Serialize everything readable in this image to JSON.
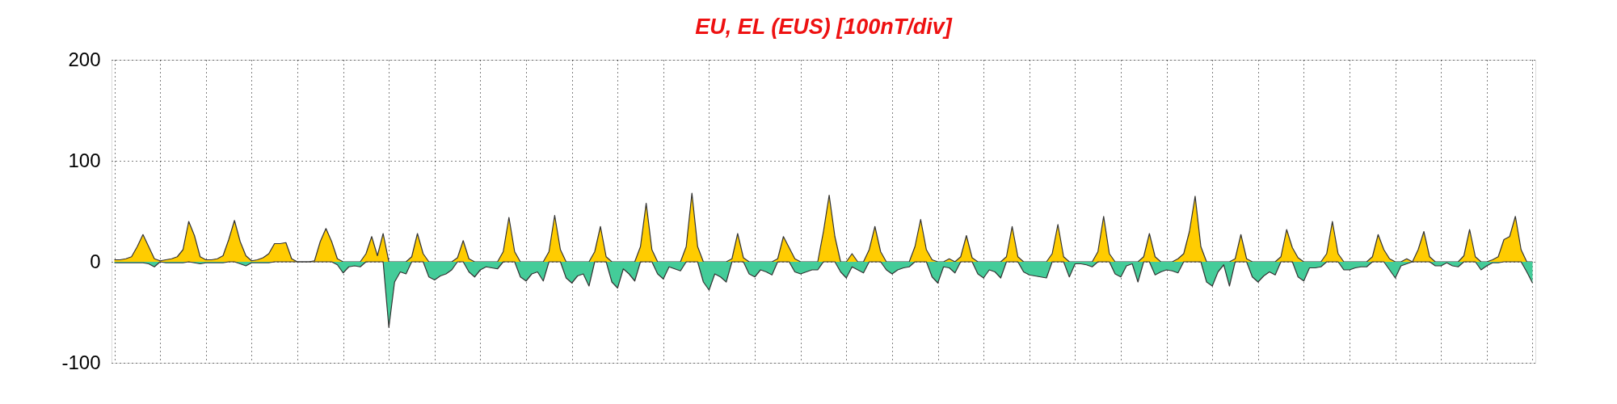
{
  "chart_data": {
    "type": "area",
    "title": "EU, EL (EUS)  [100nT/div]",
    "categories": [
      null,
      null,
      null,
      null,
      null,
      null,
      null,
      null,
      null,
      null,
      null,
      null,
      null,
      null,
      null,
      null,
      null,
      null,
      null,
      null,
      null,
      null,
      null,
      null,
      null,
      null,
      null,
      null,
      null,
      null,
      null,
      null,
      null,
      null,
      null,
      null,
      null,
      null,
      null,
      null,
      null,
      null,
      null,
      null,
      null,
      null,
      null,
      null,
      null,
      null,
      null,
      null,
      null,
      null,
      null,
      null,
      null,
      null,
      null,
      null,
      null,
      null,
      null,
      null,
      null,
      null,
      null,
      null,
      null,
      null,
      null,
      null,
      null,
      null,
      null,
      null,
      null,
      null,
      null,
      null,
      null,
      null,
      null,
      null,
      null,
      null,
      null,
      null,
      null,
      null,
      null,
      null,
      null,
      null,
      null,
      null,
      null,
      null,
      null,
      null,
      null,
      null,
      null,
      null,
      null,
      null,
      null,
      null,
      null,
      null,
      null,
      null,
      null,
      null,
      null,
      null,
      null,
      null,
      null,
      null,
      null,
      null,
      null,
      null,
      null,
      null,
      null,
      null,
      null,
      null,
      null,
      null,
      null,
      null,
      null,
      null,
      null,
      null,
      null,
      null,
      null,
      null,
      null,
      null,
      null,
      null,
      null,
      null,
      null,
      null,
      null,
      null,
      null,
      null,
      null,
      null,
      null,
      null,
      null,
      null,
      null,
      null,
      null,
      null,
      null,
      null,
      null,
      null,
      null,
      null,
      null,
      null,
      null,
      null,
      null,
      null,
      null,
      null,
      null,
      null,
      null,
      null,
      null,
      null,
      null,
      null,
      null,
      null,
      null,
      null,
      null,
      null,
      null,
      null,
      null,
      null,
      null,
      null,
      null,
      null,
      null,
      null,
      null,
      null,
      null,
      null,
      null,
      null,
      null,
      null,
      null,
      null,
      null,
      null,
      null,
      null,
      null,
      null,
      null,
      null,
      null,
      null,
      null,
      null,
      null,
      null,
      null,
      null,
      null,
      null,
      null,
      null,
      null,
      null,
      null,
      null,
      null,
      null,
      null,
      null,
      null,
      null,
      null,
      null,
      null,
      null,
      null,
      null,
      null
    ],
    "ylim": [
      -100,
      200
    ],
    "yticks": [
      -100,
      0,
      100,
      200
    ],
    "grid": true,
    "tick_labels": "y",
    "series": [
      {
        "color": "#ffcc00",
        "values": [
          2,
          2,
          3,
          5,
          15,
          27,
          15,
          3,
          1,
          2,
          3,
          5,
          12,
          40,
          26,
          5,
          2,
          2,
          3,
          6,
          22,
          41,
          20,
          6,
          1,
          2,
          4,
          8,
          18,
          18,
          19,
          3,
          0,
          0,
          0,
          1,
          20,
          33,
          20,
          3,
          0,
          0,
          0,
          0,
          8,
          25,
          6,
          28,
          0,
          0,
          0,
          0,
          5,
          28,
          8,
          0,
          0,
          0,
          0,
          0,
          4,
          21,
          3,
          0,
          0,
          0,
          0,
          0,
          10,
          44,
          10,
          0,
          0,
          0,
          0,
          0,
          10,
          46,
          12,
          0,
          0,
          0,
          0,
          0,
          10,
          35,
          5,
          0,
          0,
          0,
          0,
          0,
          15,
          58,
          12,
          0,
          0,
          0,
          0,
          0,
          15,
          68,
          15,
          0,
          0,
          0,
          0,
          0,
          3,
          28,
          4,
          0,
          0,
          0,
          0,
          0,
          3,
          25,
          14,
          3,
          0,
          0,
          0,
          0,
          30,
          66,
          25,
          0,
          0,
          8,
          0,
          0,
          12,
          35,
          10,
          0,
          0,
          0,
          0,
          0,
          15,
          42,
          12,
          2,
          0,
          0,
          3,
          0,
          5,
          26,
          4,
          0,
          0,
          0,
          0,
          0,
          5,
          35,
          5,
          0,
          0,
          0,
          0,
          0,
          8,
          37,
          5,
          0,
          0,
          0,
          0,
          0,
          10,
          45,
          8,
          0,
          0,
          0,
          0,
          0,
          5,
          28,
          5,
          0,
          0,
          0,
          3,
          8,
          30,
          65,
          15,
          0,
          0,
          0,
          0,
          0,
          3,
          27,
          3,
          0,
          0,
          0,
          0,
          0,
          5,
          32,
          14,
          4,
          0,
          0,
          0,
          0,
          8,
          40,
          8,
          0,
          0,
          0,
          0,
          0,
          5,
          27,
          12,
          3,
          0,
          0,
          3,
          0,
          12,
          30,
          5,
          0,
          0,
          0,
          0,
          0,
          6,
          32,
          5,
          0,
          0,
          2,
          5,
          22,
          25,
          45,
          12,
          0,
          0
        ]
      },
      {
        "color": "#44cc99",
        "values": [
          -1,
          -1,
          -1,
          -1,
          -1,
          -1,
          -2,
          -5,
          0,
          -1,
          -1,
          -1,
          -1,
          0,
          -1,
          -2,
          -1,
          -1,
          -1,
          -1,
          0,
          0,
          -2,
          -4,
          -1,
          -1,
          -1,
          -1,
          0,
          0,
          0,
          0,
          0,
          0,
          0,
          0,
          0,
          0,
          0,
          -3,
          -11,
          -5,
          -4,
          -5,
          0,
          0,
          0,
          0,
          -65,
          -20,
          -10,
          -12,
          0,
          0,
          0,
          -15,
          -18,
          -14,
          -12,
          -8,
          0,
          0,
          -10,
          -15,
          -8,
          -5,
          -6,
          -7,
          0,
          0,
          0,
          -15,
          -19,
          -12,
          -10,
          -19,
          0,
          0,
          0,
          -16,
          -21,
          -14,
          -12,
          -24,
          0,
          0,
          0,
          -20,
          -26,
          -7,
          -12,
          -19,
          0,
          0,
          0,
          -12,
          -17,
          -5,
          -7,
          -9,
          0,
          0,
          0,
          -20,
          -28,
          -12,
          -15,
          -20,
          0,
          0,
          0,
          -12,
          -15,
          -8,
          -10,
          -13,
          0,
          0,
          0,
          -10,
          -12,
          -10,
          -8,
          -8,
          0,
          0,
          0,
          -10,
          -16,
          -5,
          -8,
          -11,
          0,
          0,
          0,
          -8,
          -12,
          -8,
          -6,
          -5,
          0,
          0,
          0,
          -15,
          -21,
          -5,
          -6,
          -11,
          0,
          0,
          0,
          -12,
          -16,
          -8,
          -10,
          -16,
          0,
          0,
          0,
          -10,
          -13,
          -14,
          -15,
          -16,
          0,
          0,
          0,
          -15,
          -2,
          -2,
          -3,
          -5,
          0,
          0,
          0,
          -12,
          -15,
          -4,
          -2,
          -20,
          0,
          0,
          -13,
          -10,
          -8,
          -9,
          -11,
          0,
          0,
          0,
          0,
          -20,
          -24,
          -10,
          -3,
          -24,
          0,
          0,
          0,
          -15,
          -20,
          -14,
          -10,
          -13,
          0,
          0,
          0,
          -15,
          -19,
          -6,
          -6,
          -5,
          0,
          0,
          0,
          -8,
          -8,
          -6,
          -5,
          -5,
          0,
          0,
          0,
          -8,
          -16,
          -4,
          -2,
          0,
          0,
          0,
          0,
          -4,
          -4,
          -1,
          -4,
          -5,
          0,
          0,
          0,
          -8,
          -4,
          -1,
          -1,
          0,
          0,
          0,
          0,
          -10,
          -21
        ]
      }
    ]
  }
}
